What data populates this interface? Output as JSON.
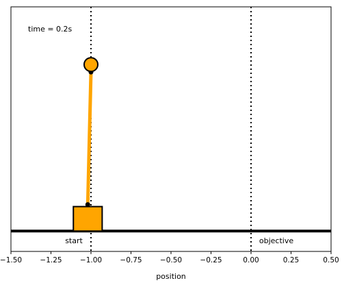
{
  "chart_data": {
    "type": "scatter",
    "title": "",
    "xlabel": "position",
    "ylabel": "",
    "xlim": [
      -1.5,
      0.5
    ],
    "ylim": [
      -0.1,
      1.1
    ],
    "xticks": [
      "−1.50",
      "−1.25",
      "−1.00",
      "−0.75",
      "−0.50",
      "−0.25",
      "0.00",
      "0.25",
      "0.50"
    ],
    "xtick_values": [
      -1.5,
      -1.25,
      -1.0,
      -0.75,
      -0.5,
      -0.25,
      0.0,
      0.25,
      0.5
    ],
    "grid": false,
    "time_label": "time = 0.2s",
    "track_y": 0.0,
    "markers": [
      {
        "label": "start",
        "x": -1.0
      },
      {
        "label": "objective",
        "x": 0.0
      }
    ],
    "cart": {
      "x": -1.02,
      "width": 0.18,
      "height": 0.12
    },
    "pole": {
      "pivot": [
        -1.02,
        0.13
      ],
      "tip": [
        -1.0,
        0.78
      ]
    },
    "colors": {
      "cart": "#ffa500",
      "pole": "#ffa500",
      "track": "#000000",
      "marker_line": "#000000"
    }
  }
}
